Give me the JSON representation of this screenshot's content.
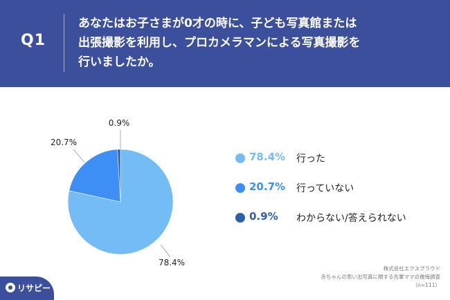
{
  "header": {
    "q_label": "Q1",
    "question_lines": [
      "あなたはお子さまが0才の時に、子ども写真館または",
      "出張撮影を利用し、プロカメラマンによる写真撮影を",
      "行いましたか。"
    ]
  },
  "chart_data": {
    "type": "pie",
    "labels": [
      "行った",
      "行っていない",
      "わからない/答えられない"
    ],
    "values": [
      78.4,
      20.7,
      0.9
    ],
    "value_labels": [
      "78.4%",
      "20.7%",
      "0.9%"
    ],
    "colors": [
      "#74bcf5",
      "#3d8ef5",
      "#2f5fa8"
    ],
    "start": "top",
    "direction": "clockwise",
    "legend_placement": "right"
  },
  "legend": [
    {
      "pct": "78.4%",
      "label": "行った",
      "color": "#74bcf5"
    },
    {
      "pct": "20.7%",
      "label": "行っていない",
      "color": "#3d8ef5"
    },
    {
      "pct": "0.9%",
      "label": "わからない/答えられない",
      "color": "#2f5fa8"
    }
  ],
  "source": {
    "line1": "株式会社エクスプラウド",
    "line2": "赤ちゃんの思い出写真に関する先輩ママの後悔調査",
    "line3": "（n=111）"
  },
  "logo": {
    "text": "リサピー"
  },
  "colors": {
    "header_bg": "#3b4f9c",
    "panel_bg": "#ffffff"
  }
}
